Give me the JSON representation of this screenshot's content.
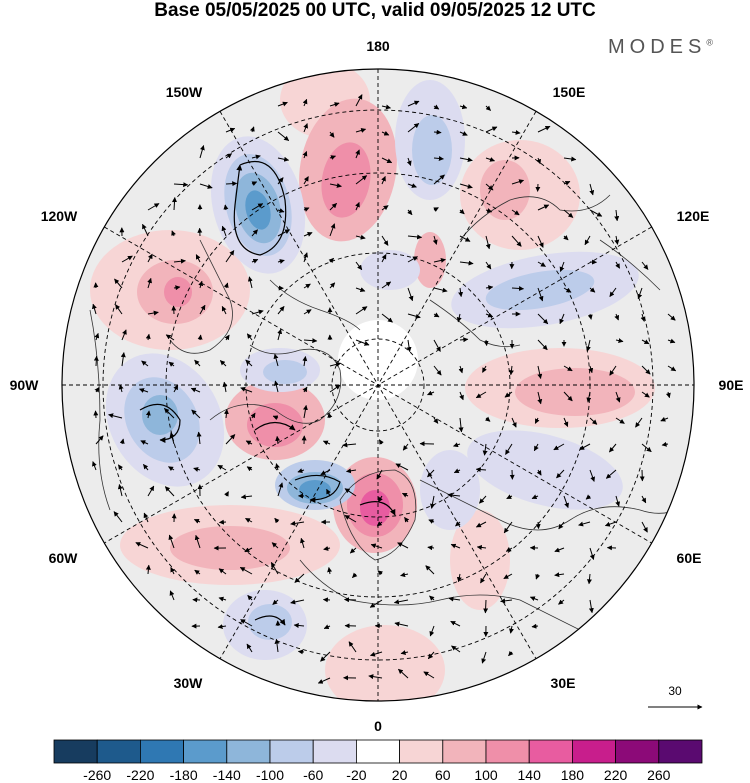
{
  "title": "Base 05/05/2025 00 UTC, valid 09/05/2025 12 UTC",
  "brand": {
    "name": "MODES",
    "mark": "®"
  },
  "map": {
    "projection": "north-polar-stereographic",
    "longitude_labels": [
      {
        "lon": 180,
        "text": "180"
      },
      {
        "lon": -150,
        "text": "150W"
      },
      {
        "lon": 150,
        "text": "150E"
      },
      {
        "lon": -120,
        "text": "120W"
      },
      {
        "lon": 120,
        "text": "120E"
      },
      {
        "lon": -90,
        "text": "90W"
      },
      {
        "lon": 90,
        "text": "90E"
      },
      {
        "lon": -60,
        "text": "60W"
      },
      {
        "lon": 60,
        "text": "60E"
      },
      {
        "lon": -30,
        "text": "30W"
      },
      {
        "lon": 30,
        "text": "30E"
      },
      {
        "lon": 0,
        "text": "0"
      }
    ],
    "latitude_circles_deg": [
      30,
      45,
      60,
      75
    ],
    "reference_vector": {
      "label": "30"
    },
    "colors": {
      "negative": [
        "#173c5f",
        "#1e5a8c",
        "#2f78b3",
        "#5b9bcc",
        "#8eb6da",
        "#bcccea",
        "#dcdcf0"
      ],
      "neutral": "#ffffff",
      "positive": [
        "#f7d5d5",
        "#f2b4bb",
        "#ef8fa9",
        "#e85ca0",
        "#c81e8c",
        "#8c0a78",
        "#5a0a70"
      ],
      "land_background": "#ececec"
    }
  },
  "colorbar": {
    "ticks": [
      "-260",
      "-220",
      "-180",
      "-140",
      "-100",
      "-60",
      "-20",
      "20",
      "60",
      "100",
      "140",
      "180",
      "220",
      "260"
    ],
    "colors": [
      "#173c5f",
      "#1e5a8c",
      "#2f78b3",
      "#5b9bcc",
      "#8eb6da",
      "#bcccea",
      "#dcdcf0",
      "#ffffff",
      "#f7d5d5",
      "#f2b4bb",
      "#ef8fa9",
      "#e85ca0",
      "#c81e8c",
      "#8c0a78",
      "#5a0a70"
    ]
  }
}
